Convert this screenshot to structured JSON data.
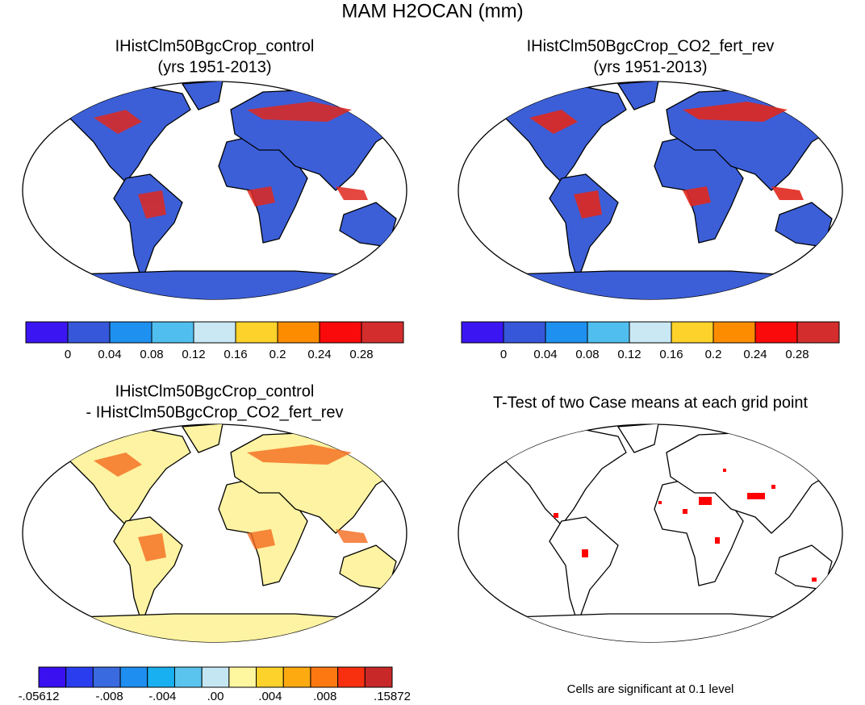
{
  "header": {
    "title": "MAM H2OCAN (mm)"
  },
  "panels": [
    {
      "title": [
        "IHistClm50BgcCrop_control",
        "(yrs 1951-2013)"
      ],
      "colorbar": [
        "0",
        "0.04",
        "0.08",
        "0.12",
        "0.16",
        "0.2",
        "0.24",
        "0.28"
      ]
    },
    {
      "title": [
        "IHistClm50BgcCrop_CO2_fert_rev",
        "(yrs 1951-2013)"
      ],
      "colorbar": [
        "0",
        "0.04",
        "0.08",
        "0.12",
        "0.16",
        "0.2",
        "0.24",
        "0.28"
      ]
    },
    {
      "title": [
        "IHistClm50BgcCrop_control",
        "- IHistClm50BgcCrop_CO2_fert_rev"
      ],
      "colorbar": [
        "-.05612",
        "-.008",
        "-.004",
        ".00",
        ".004",
        ".008",
        ".15872"
      ]
    },
    {
      "title": [
        "T-Test of two Case means at each grid point"
      ],
      "footnote": "Cells are significant at 0.1 level"
    }
  ]
}
